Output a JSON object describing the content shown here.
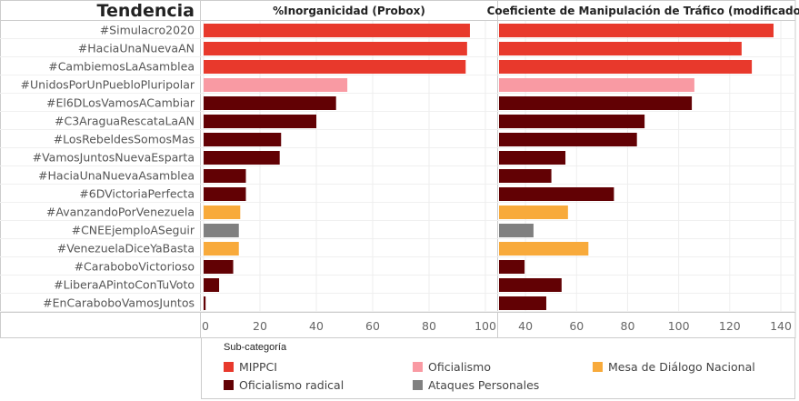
{
  "chart_data": [
    {
      "type": "bar",
      "orientation": "horizontal",
      "title": "%Inorganicidad (Probox)",
      "row_header": "Tendencia",
      "categories": [
        "#Simulacro2020",
        "#HaciaUnaNuevaAN",
        "#CambiemosLaAsamblea",
        "#UnidosPorUnPuebloPluripolar",
        "#El6DLosVamosACambiar",
        "#C3AraguaRescataLaAN",
        "#LosRebeldesSomosMas",
        "#VamosJuntosNuevaEsparta",
        "#HaciaUnaNuevaAsamblea",
        "#6DVictoriaPerfecta",
        "#AvanzandoPorVenezuela",
        "#CNEEjemploASeguir",
        "#VenezuelaDiceYaBasta",
        "#CaraboboVictorioso",
        "#LiberaAPintoConTuVoto",
        "#EnCaraboboVamosJuntos"
      ],
      "groups": [
        "MIPPCI",
        "MIPPCI",
        "MIPPCI",
        "Oficialismo",
        "Oficialismo radical",
        "Oficialismo radical",
        "Oficialismo radical",
        "Oficialismo radical",
        "Oficialismo radical",
        "Oficialismo radical",
        "Mesa de Diálogo Nacional",
        "Ataques Personales",
        "Mesa de Diálogo Nacional",
        "Oficialismo radical",
        "Oficialismo radical",
        "Oficialismo radical"
      ],
      "values": [
        94.5,
        93.5,
        93,
        51,
        47,
        40,
        27.5,
        27,
        15,
        15,
        13,
        12.5,
        12.5,
        10.5,
        5.5,
        0.7
      ],
      "xlim": [
        0,
        100
      ],
      "ticks": [
        0,
        20,
        40,
        60,
        80,
        100
      ],
      "grid": true
    },
    {
      "type": "bar",
      "orientation": "horizontal",
      "title": "Coeficiente de Manipulación de Tráfico (modificado)",
      "values": [
        137.5,
        125,
        129,
        106.5,
        105.5,
        87,
        84,
        56,
        50.5,
        75,
        57,
        43.5,
        65,
        40,
        54.5,
        48.5
      ],
      "xlim": [
        30,
        140
      ],
      "ticks": [
        40,
        60,
        80,
        100,
        120,
        140
      ],
      "grid": true
    }
  ],
  "legend": {
    "title": "Sub-categoría",
    "placement": "bottom",
    "items": [
      {
        "label": "MIPPCI",
        "color": "#e8392c"
      },
      {
        "label": "Oficialismo",
        "color": "#f99aa3"
      },
      {
        "label": "Mesa de Diálogo Nacional",
        "color": "#f8aa3b"
      },
      {
        "label": "Oficialismo radical",
        "color": "#620104"
      },
      {
        "label": "Ataques Personales",
        "color": "#808080"
      }
    ]
  }
}
